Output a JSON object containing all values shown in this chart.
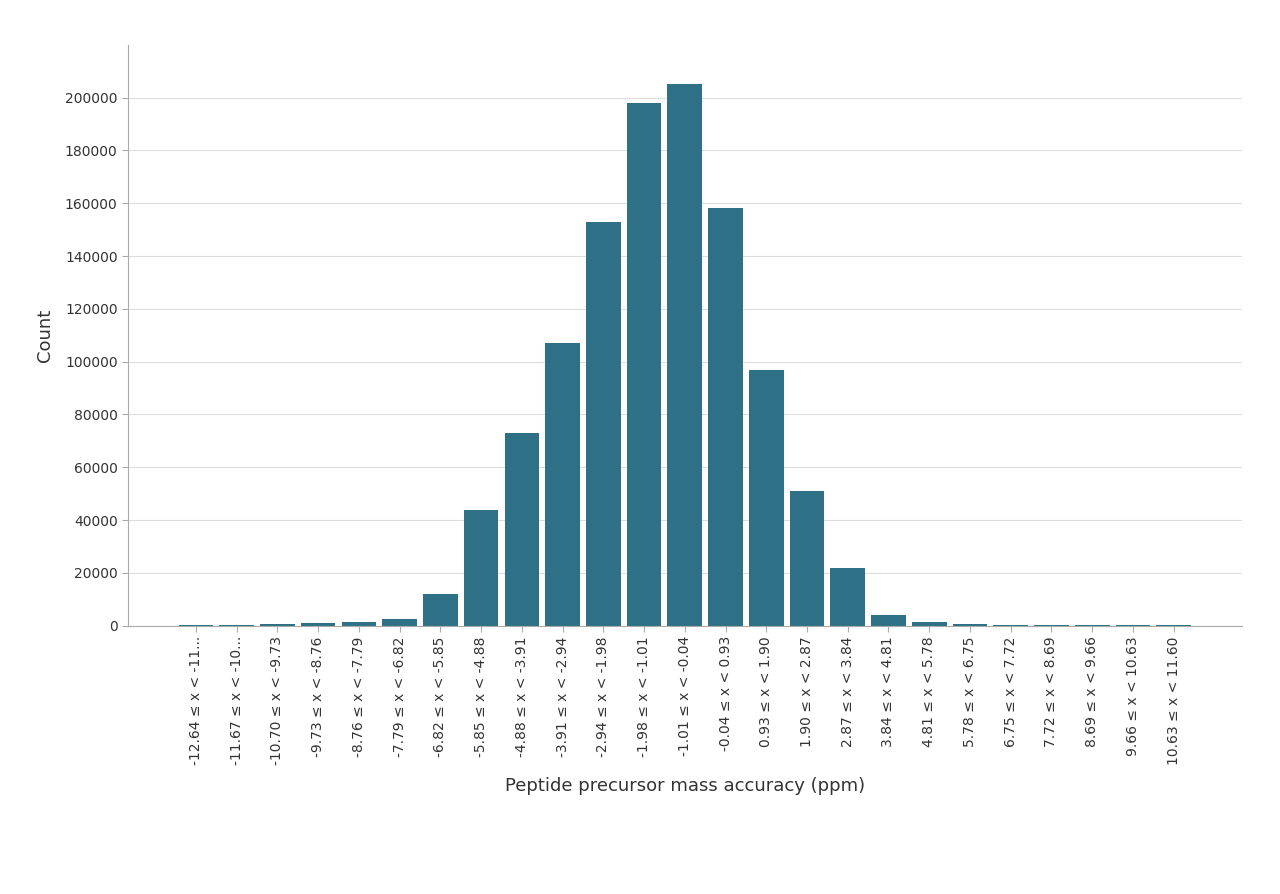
{
  "categories": [
    "-12.64 ≤ x < -11...",
    "-11.67 ≤ x < -10...",
    "-10.70 ≤ x < -9.73",
    "-9.73 ≤ x < -8.76",
    "-8.76 ≤ x < -7.79",
    "-7.79 ≤ x < -6.82",
    "-6.82 ≤ x < -5.85",
    "-5.85 ≤ x < -4.88",
    "-4.88 ≤ x < -3.91",
    "-3.91 ≤ x < -2.94",
    "-2.94 ≤ x < -1.98",
    "-1.98 ≤ x < -1.01",
    "-1.01 ≤ x < -0.04",
    "-0.04 ≤ x < 0.93",
    "0.93 ≤ x < 1.90",
    "1.90 ≤ x < 2.87",
    "2.87 ≤ x < 3.84",
    "3.84 ≤ x < 4.81",
    "4.81 ≤ x < 5.78",
    "5.78 ≤ x < 6.75",
    "6.75 ≤ x < 7.72",
    "7.72 ≤ x < 8.69",
    "8.69 ≤ x < 9.66",
    "9.66 ≤ x < 10.63",
    "10.63 ≤ x < 11.60"
  ],
  "values": [
    300,
    400,
    600,
    1000,
    1500,
    2500,
    12000,
    44000,
    73000,
    107000,
    153000,
    198000,
    205000,
    158000,
    97000,
    51000,
    22000,
    4000,
    1500,
    700,
    400,
    300,
    300,
    200,
    150
  ],
  "bar_color": "#2e7186",
  "xlabel": "Peptide precursor mass accuracy (ppm)",
  "ylabel": "Count",
  "ylim": [
    0,
    220000
  ],
  "yticks": [
    0,
    20000,
    40000,
    60000,
    80000,
    100000,
    120000,
    140000,
    160000,
    180000,
    200000
  ],
  "background_color": "#ffffff",
  "label_fontsize": 13,
  "tick_fontsize": 10,
  "spine_color": "#aaaaaa",
  "grid_color": "#dddddd"
}
